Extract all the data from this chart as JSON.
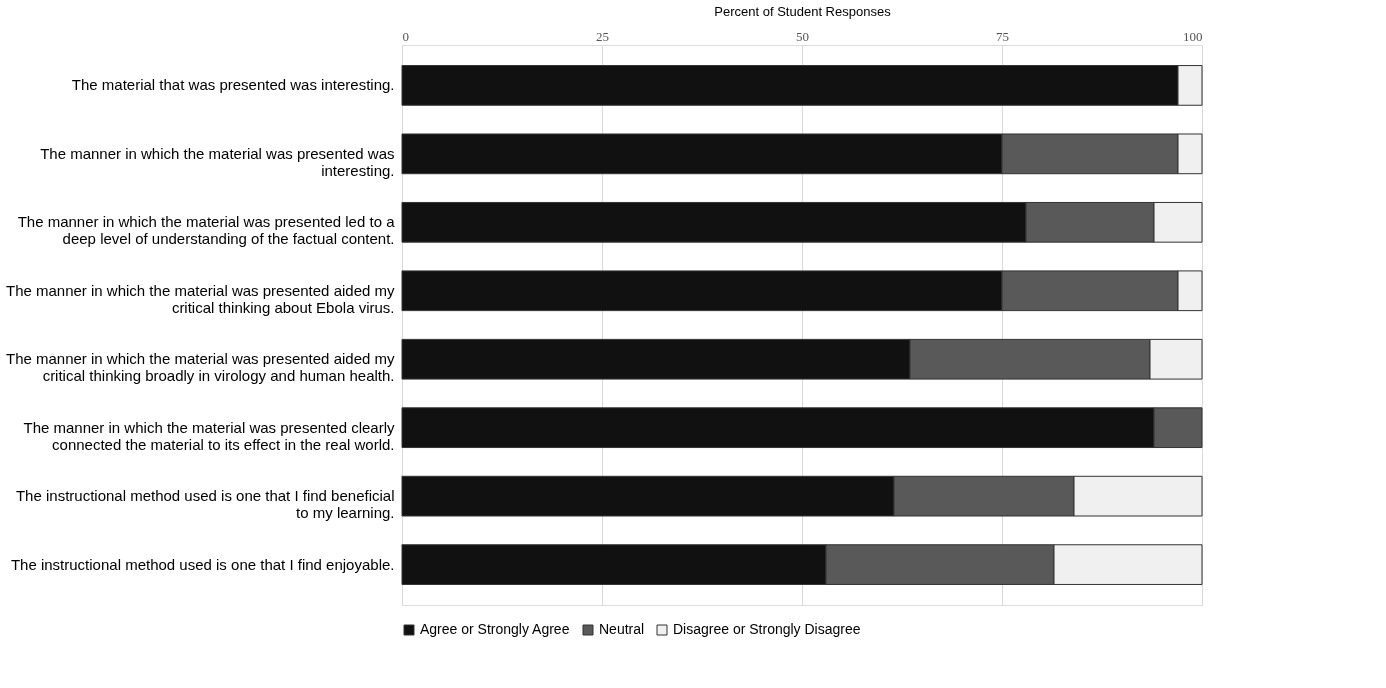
{
  "chart_data": {
    "type": "bar",
    "orientation": "horizontal",
    "stacked": true,
    "xlabel": "Percent of Student Responses",
    "categories": [
      "The material that was presented was interesting.",
      "The manner in which the material was presented was interesting.",
      "The manner in which the material was presented led to a deep level of understanding of the factual content.",
      "The manner in which the material was presented aided my critical thinking about Ebola virus.",
      "The manner in which the material was presented aided my critical thinking broadly in virology and human health.",
      "The manner in which the material was presented clearly connected the material to its effect in the real world.",
      "The instructional method used is one that I find beneficial to my learning.",
      "The instructional method used is one that I find enjoyable."
    ],
    "series": [
      {
        "name": "Agree or Strongly Agree",
        "color": "#111111",
        "values": [
          97,
          75,
          78,
          75,
          63.5,
          94,
          61.5,
          53
        ]
      },
      {
        "name": "Neutral",
        "color": "#595959",
        "values": [
          0,
          22,
          16,
          22,
          30,
          6,
          22.5,
          28.5
        ]
      },
      {
        "name": "Disagree or Strongly Disagree",
        "color": "#f0f0f0",
        "values": [
          3,
          3,
          6,
          3,
          6.5,
          0,
          16,
          18.5
        ]
      }
    ],
    "xlim": [
      0,
      100
    ],
    "xticks": [
      0,
      25,
      50,
      75,
      100
    ],
    "grid": "x",
    "legend": "bottom"
  }
}
